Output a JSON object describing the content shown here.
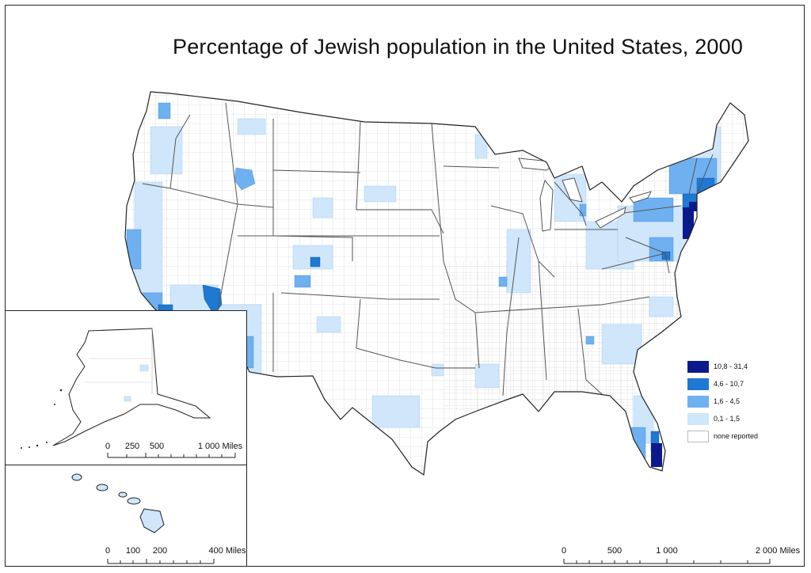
{
  "title": "Percentage of Jewish population in the United States, 2000",
  "legend": [
    {
      "label": "10,8 - 31,4",
      "color": "#0a1a8c"
    },
    {
      "label": "4,6 - 10,7",
      "color": "#1f78d1"
    },
    {
      "label": "1,6 - 4,5",
      "color": "#6fb0f0"
    },
    {
      "label": "0,1 - 1,5",
      "color": "#cfe6fb"
    },
    {
      "label": "none reported",
      "color": "#ffffff"
    }
  ],
  "scales": {
    "alaska": [
      "0",
      "250",
      "500",
      "1 000 Miles"
    ],
    "hawaii": [
      "0",
      "100",
      "200",
      "400 Miles"
    ],
    "main": [
      "0",
      "500",
      "1 000",
      "2 000 Miles"
    ]
  }
}
